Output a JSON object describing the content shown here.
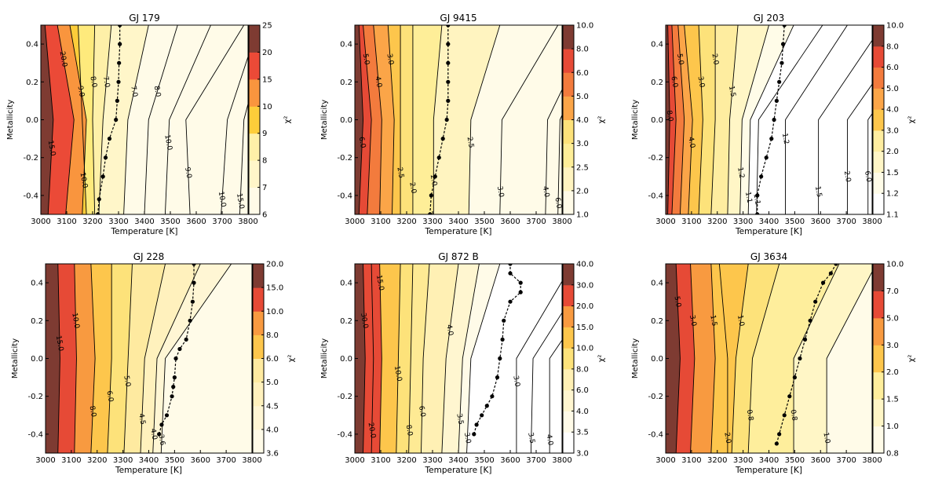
{
  "chart_data": [
    {
      "type": "heatmap",
      "title": "GJ 179",
      "xlabel": "Temperature [K]",
      "ylabel": "Metallicity",
      "colorbar_label": "χ²",
      "xlim": [
        3000,
        3800
      ],
      "ylim": [
        -0.5,
        0.5
      ],
      "xticks": [
        "3000",
        "3100",
        "3200",
        "3300",
        "3400",
        "3500",
        "3600",
        "3700",
        "3800"
      ],
      "yticks": [
        "-0.4",
        "-0.2",
        "0.0",
        "0.2",
        "0.4"
      ],
      "colorbar_ticks": [
        "6",
        "7",
        "8",
        "9",
        "10",
        "15",
        "20",
        "25"
      ],
      "band_colors": [
        "#fffbe8",
        "#fff6c9",
        "#fef0a8",
        "#feea7c",
        "#fdcd3a",
        "#f9953e",
        "#eb4a37",
        "#7e3b32"
      ],
      "contour_labels": [
        "15.0",
        "20.0",
        "10.0",
        "9.0",
        "8.0",
        "7.0",
        "7.0",
        "8.0",
        "10.0",
        "9.0",
        "10.0",
        "15.0"
      ],
      "min_track": [
        [
          3220,
          -0.5
        ],
        [
          3225,
          -0.42
        ],
        [
          3240,
          -0.3
        ],
        [
          3250,
          -0.2
        ],
        [
          3265,
          -0.1
        ],
        [
          3290,
          0.0
        ],
        [
          3295,
          0.1
        ],
        [
          3300,
          0.2
        ],
        [
          3302,
          0.3
        ],
        [
          3305,
          0.4
        ],
        [
          3305,
          0.5
        ]
      ]
    },
    {
      "type": "heatmap",
      "title": "GJ 9415",
      "xlabel": "Temperature [K]",
      "ylabel": "Metallicity",
      "colorbar_label": "χ²",
      "xlim": [
        3000,
        3800
      ],
      "ylim": [
        -0.5,
        0.5
      ],
      "xticks": [
        "3000",
        "3100",
        "3200",
        "3300",
        "3400",
        "3500",
        "3600",
        "3700",
        "3800"
      ],
      "yticks": [
        "-0.4",
        "-0.2",
        "0.0",
        "0.2",
        "0.4"
      ],
      "colorbar_ticks": [
        "1.0",
        "2.0",
        "2.5",
        "3.0",
        "4.0",
        "5.0",
        "6.0",
        "8.0",
        "10.0"
      ],
      "band_colors": [
        "#fffbe8",
        "#fff4c0",
        "#feee98",
        "#fde27a",
        "#fdc64c",
        "#fba548",
        "#f37b3d",
        "#e64a36",
        "#7e3b32"
      ],
      "contour_labels": [
        "6.0",
        "5.0",
        "4.0",
        "3.0",
        "2.5",
        "2.0",
        "2.0",
        "2.5",
        "3.0",
        "4.0",
        "6.0"
      ],
      "min_track": [
        [
          3290,
          -0.5
        ],
        [
          3295,
          -0.4
        ],
        [
          3310,
          -0.3
        ],
        [
          3325,
          -0.2
        ],
        [
          3340,
          -0.1
        ],
        [
          3355,
          0.0
        ],
        [
          3360,
          0.1
        ],
        [
          3360,
          0.2
        ],
        [
          3360,
          0.3
        ],
        [
          3360,
          0.4
        ],
        [
          3360,
          0.5
        ]
      ]
    },
    {
      "type": "heatmap",
      "title": "GJ 203",
      "xlabel": "Temperature [K]",
      "ylabel": "Metallicity",
      "colorbar_label": "χ²",
      "xlim": [
        3000,
        3800
      ],
      "ylim": [
        -0.5,
        0.5
      ],
      "xticks": [
        "3000",
        "3100",
        "3200",
        "3300",
        "3400",
        "3500",
        "3600",
        "3700",
        "3800"
      ],
      "yticks": [
        "-0.4",
        "-0.2",
        "0.0",
        "0.2",
        "0.4"
      ],
      "colorbar_ticks": [
        "1.1",
        "1.2",
        "1.5",
        "2.0",
        "3.0",
        "4.0",
        "5.0",
        "6.0",
        "8.0",
        "10.0"
      ],
      "band_colors": [
        "#ffffff",
        "#fffce8",
        "#fff6c6",
        "#feeda0",
        "#fde27a",
        "#fdc64c",
        "#fba548",
        "#f37b3d",
        "#e64a36",
        "#7e3b32"
      ],
      "contour_labels": [
        "8.0",
        "6.0",
        "5.0",
        "4.0",
        "3.0",
        "2.0",
        "1.5",
        "1.2",
        "1.1",
        "1.1",
        "1.2",
        "1.5",
        "2.0",
        "6.0"
      ],
      "min_track": [
        [
          3355,
          -0.5
        ],
        [
          3355,
          -0.4
        ],
        [
          3370,
          -0.3
        ],
        [
          3390,
          -0.2
        ],
        [
          3410,
          -0.1
        ],
        [
          3420,
          0.0
        ],
        [
          3430,
          0.1
        ],
        [
          3440,
          0.2
        ],
        [
          3450,
          0.3
        ],
        [
          3455,
          0.4
        ],
        [
          3460,
          0.5
        ]
      ]
    },
    {
      "type": "heatmap",
      "title": "GJ 228",
      "xlabel": "Temperature [K]",
      "ylabel": "Metallicity",
      "colorbar_label": "χ²",
      "xlim": [
        3000,
        3800
      ],
      "ylim": [
        -0.5,
        0.5
      ],
      "xticks": [
        "3000",
        "3100",
        "3200",
        "3300",
        "3400",
        "3500",
        "3600",
        "3700",
        "3800"
      ],
      "yticks": [
        "-0.4",
        "-0.2",
        "0.0",
        "0.2",
        "0.4"
      ],
      "colorbar_ticks": [
        "3.6",
        "4.0",
        "4.5",
        "5.0",
        "6.0",
        "8.0",
        "10.0",
        "15.0",
        "20.0"
      ],
      "band_colors": [
        "#fffbe8",
        "#fff6d4",
        "#fff1bd",
        "#feeaa0",
        "#fde27a",
        "#fdc64c",
        "#f89a40",
        "#e64a36",
        "#7e3b32"
      ],
      "contour_labels": [
        "15.0",
        "10.0",
        "8.0",
        "6.0",
        "5.0",
        "4.5",
        "4.0",
        "3.6"
      ],
      "min_track": [
        [
          3440,
          -0.4
        ],
        [
          3450,
          -0.35
        ],
        [
          3470,
          -0.3
        ],
        [
          3490,
          -0.2
        ],
        [
          3495,
          -0.15
        ],
        [
          3500,
          -0.1
        ],
        [
          3505,
          0.0
        ],
        [
          3520,
          0.05
        ],
        [
          3545,
          0.1
        ],
        [
          3560,
          0.2
        ],
        [
          3570,
          0.3
        ],
        [
          3575,
          0.4
        ],
        [
          3575,
          0.5
        ]
      ]
    },
    {
      "type": "heatmap",
      "title": "GJ 872 B",
      "xlabel": "Temperature [K]",
      "ylabel": "Metallicity",
      "colorbar_label": "χ²",
      "xlim": [
        3000,
        3800
      ],
      "ylim": [
        -0.5,
        0.5
      ],
      "xticks": [
        "3000",
        "3100",
        "3200",
        "3300",
        "3400",
        "3500",
        "3600",
        "3700",
        "3800"
      ],
      "yticks": [
        "-0.4",
        "-0.2",
        "0.0",
        "0.2",
        "0.4"
      ],
      "colorbar_ticks": [
        "3.0",
        "3.5",
        "4.0",
        "6.0",
        "8.0",
        "10.0",
        "15.0",
        "20.0",
        "30.0",
        "40.0"
      ],
      "band_colors": [
        "#ffffff",
        "#fffbe8",
        "#fff6d0",
        "#fff0b4",
        "#feea94",
        "#fde27a",
        "#fdc64c",
        "#f89a40",
        "#e64a36",
        "#7e3b32"
      ],
      "contour_labels": [
        "30.0",
        "15.0",
        "20.0",
        "10.0",
        "8.0",
        "6.0",
        "4.0",
        "3.5",
        "3.0",
        "3.0",
        "3.5",
        "4.0"
      ],
      "min_track": [
        [
          3460,
          -0.4
        ],
        [
          3470,
          -0.35
        ],
        [
          3490,
          -0.3
        ],
        [
          3510,
          -0.25
        ],
        [
          3530,
          -0.2
        ],
        [
          3550,
          -0.1
        ],
        [
          3560,
          0.0
        ],
        [
          3570,
          0.1
        ],
        [
          3575,
          0.2
        ],
        [
          3600,
          0.3
        ],
        [
          3640,
          0.35
        ],
        [
          3640,
          0.4
        ],
        [
          3600,
          0.45
        ],
        [
          3600,
          0.5
        ]
      ]
    },
    {
      "type": "heatmap",
      "title": "GJ 3634",
      "xlabel": "Temperature [K]",
      "ylabel": "Metallicity",
      "colorbar_label": "χ²",
      "xlim": [
        3000,
        3800
      ],
      "ylim": [
        -0.5,
        0.5
      ],
      "xticks": [
        "3000",
        "3100",
        "3200",
        "3300",
        "3400",
        "3500",
        "3600",
        "3700",
        "3800"
      ],
      "yticks": [
        "-0.4",
        "-0.2",
        "0.0",
        "0.2",
        "0.4"
      ],
      "colorbar_ticks": [
        "0.8",
        "1.0",
        "1.5",
        "2.0",
        "3.0",
        "5.0",
        "7.0",
        "10.0"
      ],
      "band_colors": [
        "#fffbe8",
        "#fff6c6",
        "#feee9c",
        "#fde27a",
        "#fdc64c",
        "#f89a40",
        "#e64a36",
        "#7e3b32"
      ],
      "contour_labels": [
        "5.0",
        "3.0",
        "1.5",
        "1.0",
        "0.8",
        "0.8",
        "1.0",
        "2.0"
      ],
      "min_track": [
        [
          3430,
          -0.45
        ],
        [
          3440,
          -0.4
        ],
        [
          3460,
          -0.3
        ],
        [
          3480,
          -0.2
        ],
        [
          3500,
          -0.1
        ],
        [
          3520,
          0.0
        ],
        [
          3540,
          0.1
        ],
        [
          3560,
          0.2
        ],
        [
          3580,
          0.3
        ],
        [
          3610,
          0.4
        ],
        [
          3640,
          0.45
        ],
        [
          3660,
          0.5
        ]
      ]
    }
  ]
}
